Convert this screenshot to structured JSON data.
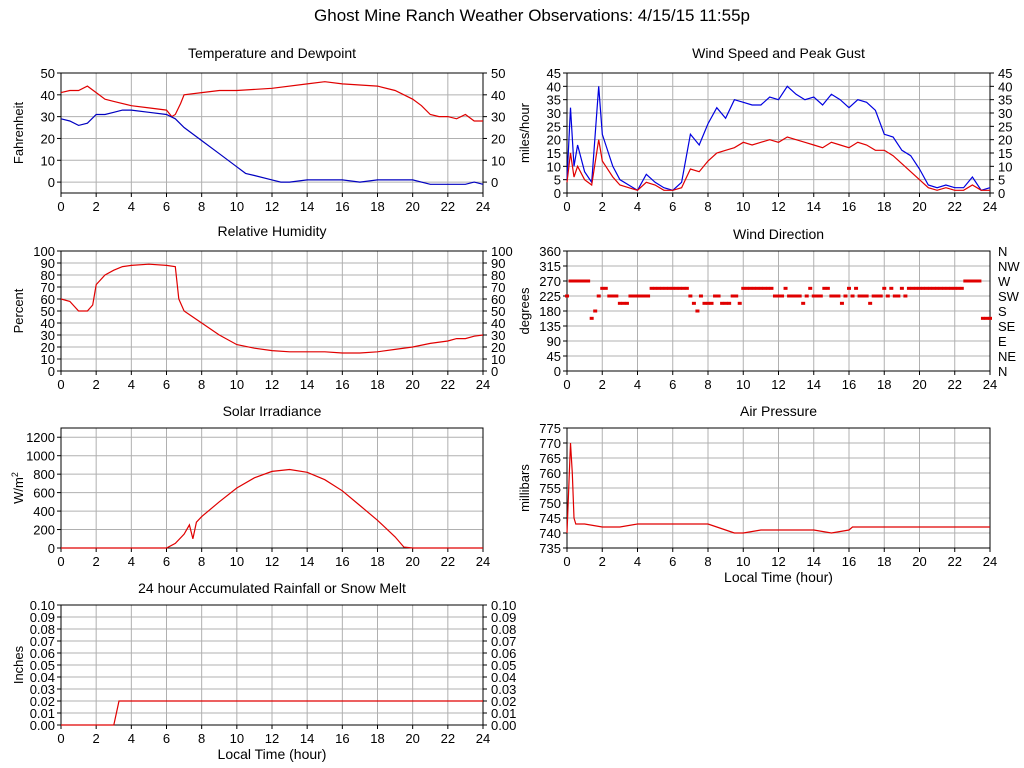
{
  "page": {
    "title": "Ghost Mine Ranch Weather Observations: 4/15/15 11:55p"
  },
  "chart_data": [
    {
      "id": "temp",
      "type": "line",
      "title": "Temperature and Dewpoint",
      "xlabel": "",
      "ylabel": "Fahrenheit",
      "xlim": [
        0,
        24
      ],
      "ylim": [
        -5,
        50
      ],
      "xticks": [
        0,
        2,
        4,
        6,
        8,
        10,
        12,
        14,
        16,
        18,
        20,
        22,
        24
      ],
      "yticks": [
        0,
        10,
        20,
        30,
        40,
        50
      ],
      "right_axis": true,
      "series": [
        {
          "color": "#e00000",
          "x": [
            0,
            0.5,
            1,
            1.5,
            2,
            2.5,
            3,
            4,
            5,
            6,
            6.3,
            6.5,
            6.8,
            7,
            8,
            9,
            10,
            12,
            14,
            15,
            16,
            18,
            19,
            20,
            20.5,
            21,
            21.5,
            22,
            22.5,
            23,
            23.5,
            24
          ],
          "y": [
            41,
            42,
            42,
            44,
            41,
            38,
            37,
            35,
            34,
            33,
            30,
            31,
            36,
            40,
            41,
            42,
            42,
            43,
            45,
            46,
            45,
            44,
            42,
            38,
            35,
            31,
            30,
            30,
            29,
            31,
            28,
            28
          ]
        },
        {
          "color": "#0000c0",
          "x": [
            0,
            0.5,
            1,
            1.5,
            2,
            2.5,
            3,
            3.5,
            4,
            5,
            6,
            6.5,
            7,
            8,
            9,
            10,
            10.5,
            11,
            12,
            12.5,
            13,
            14,
            15,
            16,
            17,
            18,
            19,
            20,
            21,
            22,
            23,
            23.5,
            24
          ],
          "y": [
            29,
            28,
            26,
            27,
            31,
            31,
            32,
            33,
            33,
            32,
            31,
            29,
            25,
            19,
            13,
            7,
            4,
            3,
            1,
            0,
            0,
            1,
            1,
            1,
            0,
            1,
            1,
            1,
            -1,
            -1,
            -1,
            0,
            -1
          ]
        }
      ]
    },
    {
      "id": "wind",
      "type": "line",
      "title": "Wind Speed and Peak Gust",
      "xlabel": "",
      "ylabel": "miles/hour",
      "xlim": [
        0,
        24
      ],
      "ylim": [
        0,
        45
      ],
      "xticks": [
        0,
        2,
        4,
        6,
        8,
        10,
        12,
        14,
        16,
        18,
        20,
        22,
        24
      ],
      "yticks": [
        0,
        5,
        10,
        15,
        20,
        25,
        30,
        35,
        40,
        45
      ],
      "right_axis": true,
      "series": [
        {
          "color": "#0000e0",
          "x": [
            0,
            0.2,
            0.4,
            0.6,
            1,
            1.4,
            1.8,
            2,
            2.2,
            2.6,
            3,
            3.5,
            4,
            4.5,
            5,
            5.5,
            6,
            6.5,
            7,
            7.5,
            8,
            8.5,
            9,
            9.5,
            10,
            10.5,
            11,
            11.5,
            12,
            12.5,
            13,
            13.5,
            14,
            14.5,
            15,
            15.5,
            16,
            16.5,
            17,
            17.5,
            18,
            18.5,
            19,
            19.5,
            20,
            20.5,
            21,
            21.5,
            22,
            22.5,
            23,
            23.5,
            24
          ],
          "y": [
            5,
            32,
            10,
            18,
            8,
            4,
            40,
            22,
            18,
            10,
            5,
            3,
            1,
            7,
            4,
            2,
            1,
            4,
            22,
            18,
            26,
            32,
            28,
            35,
            34,
            33,
            33,
            36,
            35,
            40,
            37,
            35,
            36,
            33,
            37,
            35,
            32,
            35,
            34,
            31,
            22,
            21,
            16,
            14,
            9,
            3,
            2,
            3,
            2,
            2,
            6,
            1,
            2
          ]
        },
        {
          "color": "#e00000",
          "x": [
            0,
            0.2,
            0.4,
            0.6,
            1,
            1.4,
            1.8,
            2,
            2.2,
            2.6,
            3,
            3.5,
            4,
            4.5,
            5,
            5.5,
            6,
            6.5,
            7,
            7.5,
            8,
            8.5,
            9,
            9.5,
            10,
            10.5,
            11,
            11.5,
            12,
            12.5,
            13,
            13.5,
            14,
            14.5,
            15,
            15.5,
            16,
            16.5,
            17,
            17.5,
            18,
            18.5,
            19,
            19.5,
            20,
            20.5,
            21,
            21.5,
            22,
            22.5,
            23,
            23.5,
            24
          ],
          "y": [
            4,
            15,
            6,
            10,
            5,
            3,
            20,
            12,
            10,
            6,
            3,
            2,
            1,
            4,
            3,
            1,
            1,
            2,
            9,
            8,
            12,
            15,
            16,
            17,
            19,
            18,
            19,
            20,
            19,
            21,
            20,
            19,
            18,
            17,
            19,
            18,
            17,
            19,
            18,
            16,
            16,
            14,
            11,
            8,
            5,
            2,
            1,
            2,
            1,
            1,
            3,
            1,
            1
          ]
        }
      ]
    },
    {
      "id": "rh",
      "type": "line",
      "title": "Relative Humidity",
      "xlabel": "",
      "ylabel": "Percent",
      "xlim": [
        0,
        24
      ],
      "ylim": [
        0,
        100
      ],
      "xticks": [
        0,
        2,
        4,
        6,
        8,
        10,
        12,
        14,
        16,
        18,
        20,
        22,
        24
      ],
      "yticks": [
        0,
        10,
        20,
        30,
        40,
        50,
        60,
        70,
        80,
        90,
        100
      ],
      "right_axis": true,
      "series": [
        {
          "color": "#e00000",
          "x": [
            0,
            0.5,
            1,
            1.5,
            1.8,
            2,
            2.5,
            3,
            3.5,
            4,
            5,
            6,
            6.5,
            6.7,
            7,
            7.5,
            8,
            9,
            10,
            11,
            12,
            13,
            14,
            15,
            16,
            17,
            18,
            19,
            20,
            21,
            22,
            22.5,
            23,
            23.5,
            24
          ],
          "y": [
            60,
            58,
            50,
            50,
            55,
            72,
            80,
            84,
            87,
            88,
            89,
            88,
            87,
            60,
            50,
            45,
            40,
            30,
            22,
            19,
            17,
            16,
            16,
            16,
            15,
            15,
            16,
            18,
            20,
            23,
            25,
            27,
            27,
            29,
            30
          ]
        }
      ]
    },
    {
      "id": "wdir",
      "type": "scatter",
      "title": "Wind Direction",
      "xlabel": "",
      "ylabel": "degrees",
      "xlim": [
        0,
        24
      ],
      "ylim": [
        0,
        360
      ],
      "xticks": [
        0,
        2,
        4,
        6,
        8,
        10,
        12,
        14,
        16,
        18,
        20,
        22,
        24
      ],
      "yticks": [
        0,
        45,
        90,
        135,
        180,
        225,
        270,
        315,
        360
      ],
      "right_labels": [
        "N",
        "NE",
        "E",
        "SE",
        "S",
        "SW",
        "W",
        "NW",
        "N"
      ],
      "series": [
        {
          "color": "#e00000",
          "x": [
            0,
            0.2,
            0.4,
            0.6,
            0.8,
            1,
            1.2,
            1.4,
            1.6,
            1.8,
            2,
            2.2,
            2.4,
            2.6,
            2.8,
            3,
            3.2,
            3.4,
            3.6,
            3.8,
            4,
            4.2,
            4.4,
            4.6,
            4.8,
            5,
            5.2,
            5.4,
            5.6,
            5.8,
            6,
            6.2,
            6.4,
            6.6,
            6.8,
            7,
            7.2,
            7.4,
            7.6,
            7.8,
            8,
            8.2,
            8.4,
            8.6,
            8.8,
            9,
            9.2,
            9.4,
            9.6,
            9.8,
            10,
            10.2,
            10.4,
            10.6,
            10.8,
            11,
            11.2,
            11.4,
            11.6,
            11.8,
            12,
            12.2,
            12.4,
            12.6,
            12.8,
            13,
            13.2,
            13.4,
            13.6,
            13.8,
            14,
            14.2,
            14.4,
            14.6,
            14.8,
            15,
            15.2,
            15.4,
            15.6,
            15.8,
            16,
            16.2,
            16.4,
            16.6,
            16.8,
            17,
            17.2,
            17.4,
            17.6,
            17.8,
            18,
            18.2,
            18.4,
            18.6,
            18.8,
            19,
            19.2,
            19.4,
            19.6,
            19.8,
            20,
            20.2,
            20.4,
            20.6,
            20.8,
            21,
            21.2,
            21.4,
            21.6,
            21.8,
            22,
            22.2,
            22.4,
            22.6,
            22.8,
            23,
            23.2,
            23.4,
            23.6,
            23.8,
            24
          ],
          "y": [
            225,
            270,
            270,
            270,
            270,
            270,
            270,
            158,
            180,
            225,
            248,
            248,
            225,
            225,
            225,
            203,
            203,
            203,
            225,
            225,
            225,
            225,
            225,
            225,
            248,
            248,
            248,
            248,
            248,
            248,
            248,
            248,
            248,
            248,
            248,
            225,
            203,
            180,
            225,
            203,
            203,
            203,
            225,
            225,
            203,
            203,
            203,
            225,
            225,
            203,
            248,
            248,
            248,
            248,
            248,
            248,
            248,
            248,
            248,
            225,
            225,
            225,
            248,
            225,
            225,
            225,
            225,
            203,
            225,
            248,
            225,
            225,
            225,
            248,
            248,
            225,
            225,
            225,
            203,
            225,
            248,
            225,
            248,
            225,
            225,
            225,
            203,
            225,
            225,
            225,
            248,
            225,
            248,
            225,
            225,
            248,
            225,
            248,
            248,
            248,
            248,
            248,
            248,
            248,
            248,
            248,
            248,
            248,
            248,
            248,
            248,
            248,
            248,
            270,
            270,
            270,
            270,
            270,
            158,
            158,
            158
          ]
        }
      ]
    },
    {
      "id": "solar",
      "type": "line",
      "title": "Solar Irradiance",
      "xlabel": "",
      "ylabel": "W/m2",
      "xlim": [
        0,
        24
      ],
      "ylim": [
        0,
        1300
      ],
      "xticks": [
        0,
        2,
        4,
        6,
        8,
        10,
        12,
        14,
        16,
        18,
        20,
        22,
        24
      ],
      "yticks": [
        0,
        200,
        400,
        600,
        800,
        1000,
        1200
      ],
      "right_axis": false,
      "series": [
        {
          "color": "#e00000",
          "x": [
            0,
            6,
            6.5,
            7,
            7.3,
            7.5,
            7.7,
            8,
            9,
            10,
            11,
            12,
            13,
            14,
            15,
            16,
            17,
            18,
            19,
            19.5,
            20,
            24
          ],
          "y": [
            0,
            0,
            50,
            150,
            250,
            100,
            280,
            340,
            500,
            650,
            760,
            830,
            850,
            820,
            740,
            620,
            460,
            300,
            120,
            10,
            0,
            0
          ]
        }
      ]
    },
    {
      "id": "pressure",
      "type": "line",
      "title": "Air Pressure",
      "xlabel": "Local Time (hour)",
      "ylabel": "millibars",
      "xlim": [
        0,
        24
      ],
      "ylim": [
        735,
        775
      ],
      "xticks": [
        0,
        2,
        4,
        6,
        8,
        10,
        12,
        14,
        16,
        18,
        20,
        22,
        24
      ],
      "yticks": [
        735,
        740,
        745,
        750,
        755,
        760,
        765,
        770,
        775
      ],
      "right_axis": false,
      "series": [
        {
          "color": "#e00000",
          "x": [
            0,
            0.2,
            0.3,
            0.4,
            0.5,
            1,
            2,
            3,
            4,
            5,
            6,
            7,
            8,
            8.5,
            9,
            9.5,
            10,
            11,
            12,
            13,
            14,
            15,
            16,
            16.2,
            17,
            18,
            19,
            20,
            21,
            22,
            23,
            23.5,
            24
          ],
          "y": [
            740,
            770,
            760,
            745,
            743,
            743,
            742,
            742,
            743,
            743,
            743,
            743,
            743,
            742,
            741,
            740,
            740,
            741,
            741,
            741,
            741,
            740,
            741,
            742,
            742,
            742,
            742,
            742,
            742,
            742,
            742,
            742,
            742
          ]
        }
      ]
    },
    {
      "id": "rain",
      "type": "line",
      "title": "24 hour Accumulated Rainfall or Snow Melt",
      "xlabel": "Local Time (hour)",
      "ylabel": "Inches",
      "xlim": [
        0,
        24
      ],
      "ylim": [
        0,
        0.1
      ],
      "xticks": [
        0,
        2,
        4,
        6,
        8,
        10,
        12,
        14,
        16,
        18,
        20,
        22,
        24
      ],
      "yticks": [
        0,
        0.01,
        0.02,
        0.03,
        0.04,
        0.05,
        0.06,
        0.07,
        0.08,
        0.09,
        0.1
      ],
      "ytick_labels": [
        "0.00",
        "0.01",
        "0.02",
        "0.03",
        "0.04",
        "0.05",
        "0.06",
        "0.07",
        "0.08",
        "0.09",
        "0.10"
      ],
      "right_axis": true,
      "series": [
        {
          "color": "#e00000",
          "x": [
            0,
            3,
            3.3,
            24
          ],
          "y": [
            0,
            0,
            0.02,
            0.02
          ]
        }
      ]
    }
  ]
}
